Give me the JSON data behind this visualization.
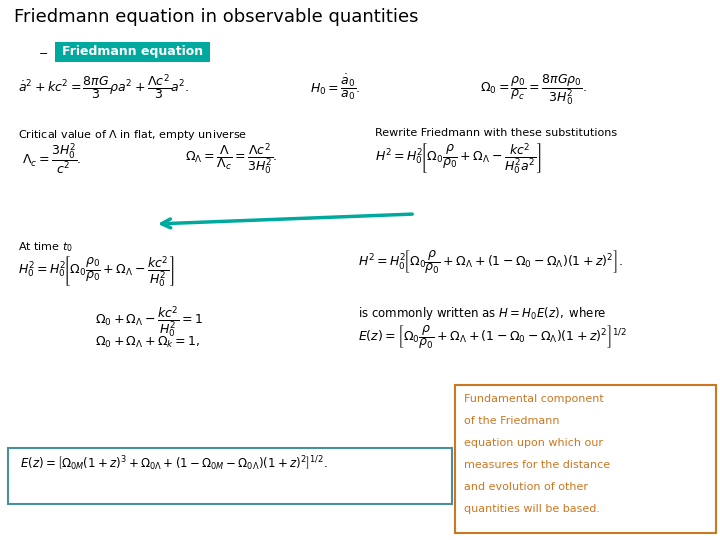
{
  "title": "Friedmann equation in observable quantities",
  "title_fontsize": 13,
  "title_color": "#000000",
  "background_color": "#ffffff",
  "label_friedmann_eq": "Friedmann equation",
  "label_friedmann_bg": "#00a99d",
  "label_friedmann_color": "#ffffff",
  "label_critical": "Critical value of $\\Lambda$ in flat, empty universe",
  "label_rewrite": "Rewrite Friedmann with these substitutions",
  "label_attime": "At time $t_0$",
  "eq1": "$\\dot{a}^2 + kc^2 = \\dfrac{8\\pi G}{3}\\rho a^2 + \\dfrac{\\Lambda c^2}{3}a^2.$",
  "eq2": "$H_0 = \\dfrac{\\dot{a}_0}{a_0}.$",
  "eq3": "$\\Omega_0 = \\dfrac{\\rho_0}{\\rho_c} = \\dfrac{8\\pi G\\rho_0}{3H_0^2}.$",
  "eq_lambda_c": "$\\Lambda_c = \\dfrac{3H_0^2}{c^2}.$",
  "eq_omega_lambda": "$\\Omega_\\Lambda = \\dfrac{\\Lambda}{\\Lambda_c} = \\dfrac{\\Lambda c^2}{3H_0^2}.$",
  "eq_H2_rewrite": "$H^2 = H_0^2\\!\\left[\\Omega_0\\dfrac{\\rho}{\\rho_0} + \\Omega_\\Lambda - \\dfrac{kc^2}{H_0^2 a^2}\\right]$",
  "eq_H02": "$H_0^2 = H_0^2\\!\\left[\\Omega_0\\dfrac{\\rho_0}{\\rho_0} + \\Omega_\\Lambda - \\dfrac{kc^2}{H_0^2}\\right]$",
  "eq_omega_sum1": "$\\Omega_0 + \\Omega_\\Lambda - \\dfrac{kc^2}{H_0^2} = 1$",
  "eq_omega_sum2": "$\\Omega_0 + \\Omega_\\Lambda + \\Omega_k = 1,$",
  "eq_H2_z": "$H^2 = H_0^2\\!\\left[\\Omega_0\\dfrac{\\rho}{\\rho_0} + \\Omega_\\Lambda + (1-\\Omega_0-\\Omega_\\Lambda)(1+z)^2\\right].$",
  "eq_written": "is commonly written as $H = H_0 E(z),$ where",
  "eq_Ez_full": "$E(z) = \\left[\\Omega_0\\dfrac{\\rho}{\\rho_0} + \\Omega_\\Lambda + (1-\\Omega_0-\\Omega_\\Lambda)(1+z)^2\\right]^{1/2}$",
  "eq_Ez_matter": "$E(z) = \\left[\\Omega_{0M}(1+z)^3 + \\Omega_{0\\Lambda} + (1-\\Omega_{0M}-\\Omega_{0\\Lambda})(1+z)^2\\right]^{1/2}.$",
  "box_text_lines": [
    "Fundamental component",
    "of the Friedmann",
    "equation upon which our",
    "measures for the distance",
    "and evolution of other",
    "quantities will be based."
  ],
  "box_color": "#cc7722",
  "box_text_color": "#cc7722",
  "arrow_color": "#00a99d",
  "eq_border_color": "#4a8fa0",
  "orange_border": "#cc7722"
}
